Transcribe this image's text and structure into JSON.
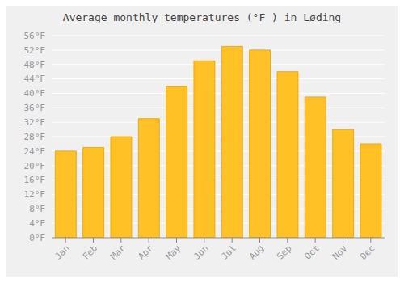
{
  "chart_data": {
    "type": "bar",
    "title": "Average monthly temperatures (°F ) in Løding",
    "categories": [
      "Jan",
      "Feb",
      "Mar",
      "Apr",
      "May",
      "Jun",
      "Jul",
      "Aug",
      "Sep",
      "Oct",
      "Nov",
      "Dec"
    ],
    "values": [
      24,
      25,
      28,
      33,
      42,
      49,
      53,
      52,
      46,
      39,
      30,
      26
    ],
    "color": "#FFC125",
    "ylim": [
      0,
      56
    ],
    "yticks": [
      {
        "value": 0,
        "label": "0°F"
      },
      {
        "value": 4,
        "label": "4°F"
      },
      {
        "value": 8,
        "label": "8°F"
      },
      {
        "value": 12,
        "label": "12°F"
      },
      {
        "value": 16,
        "label": "16°F"
      },
      {
        "value": 20,
        "label": "20°F"
      },
      {
        "value": 24,
        "label": "24°F"
      },
      {
        "value": 28,
        "label": "28°F"
      },
      {
        "value": 32,
        "label": "32°F"
      },
      {
        "value": 36,
        "label": "36°F"
      },
      {
        "value": 40,
        "label": "40°F"
      },
      {
        "value": 44,
        "label": "44°F"
      },
      {
        "value": 48,
        "label": "48°F"
      },
      {
        "value": 52,
        "label": "52°F"
      },
      {
        "value": 56,
        "label": "56°F"
      }
    ],
    "grid": true
  }
}
